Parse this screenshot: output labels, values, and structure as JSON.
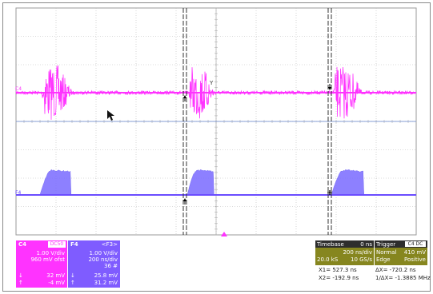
{
  "traces": {
    "c4": {
      "label": "C4",
      "color": "#ff33ff"
    },
    "f4": {
      "label": "F4",
      "color": "#6a4cff"
    }
  },
  "c4_panel": {
    "title": "C4",
    "coupling": "DC50",
    "vdiv": "1.00 V/div",
    "offset": "960 mV ofst",
    "meas1": "32 mV",
    "meas2": "-4 mV"
  },
  "f4_panel": {
    "title": "F4",
    "source": "<F3>",
    "vdiv": "1.00 V/div",
    "tdiv": "200 ns/div",
    "count": "36 #",
    "meas1": "25.8 mV",
    "meas2": "31.2 mV"
  },
  "timebase_panel": {
    "title": "Timebase",
    "delay": "0 ns",
    "tdiv": "200 ns/div",
    "samples": "20.0 kS",
    "rate": "10 GS/s"
  },
  "trigger_panel": {
    "title": "Trigger",
    "source": "C4 DC",
    "mode": "Normal",
    "level": "410 mV",
    "type": "Edge",
    "slope": "Positive"
  },
  "cursor_readout": {
    "x1": "X1=  527.3 ns",
    "dx": "ΔX=      -720.2 ns",
    "x2": "X2=  -192.9 ns",
    "inv_dx": "1/ΔX=  -1.3885 MHz"
  },
  "colors": {
    "grid": "#b8b8b8",
    "cursor": "#333333"
  },
  "icons": [
    "mouse-pointer-icon",
    "trigger-arrow-icon"
  ]
}
